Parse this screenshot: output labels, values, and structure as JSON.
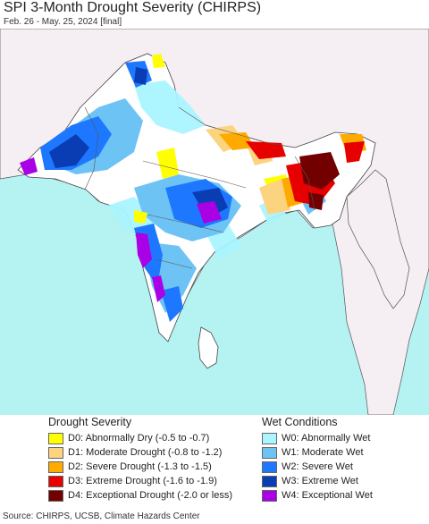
{
  "header": {
    "title": "SPI 3-Month Drought Severity (CHIRPS)",
    "subtitle": "Feb. 26 - May. 25, 2024 [final]"
  },
  "map": {
    "ocean_color": "#b5f2f2",
    "land_color": "#ffffff",
    "outside_land_color": "#f5eef2",
    "border_color": "#444444"
  },
  "legend": {
    "drought_title": "Drought Severity",
    "wet_title": "Wet Conditions",
    "drought_items": [
      {
        "label": "D0: Abnormally Dry (-0.5 to -0.7)",
        "color": "#ffff00"
      },
      {
        "label": "D1: Moderate Drought (-0.8 to -1.2)",
        "color": "#fcd37f"
      },
      {
        "label": "D2: Severe Drought (-1.3 to -1.5)",
        "color": "#ffaa00"
      },
      {
        "label": "D3: Extreme Drought (-1.6 to -1.9)",
        "color": "#e60000"
      },
      {
        "label": "D4: Exceptional Drought (-2.0 or less)",
        "color": "#730000"
      }
    ],
    "wet_items": [
      {
        "label": "W0: Abnormally Wet",
        "color": "#aaf5ff"
      },
      {
        "label": "W1: Moderate Wet",
        "color": "#6ec3f5"
      },
      {
        "label": "W2: Severe Wet",
        "color": "#1e78ff"
      },
      {
        "label": "W3: Extreme Wet",
        "color": "#0a3cb4"
      },
      {
        "label": "W4: Exceptional Wet",
        "color": "#aa00e6"
      }
    ]
  },
  "footer": {
    "source": "Source: CHIRPS, UCSB, Climate Hazards Center"
  }
}
